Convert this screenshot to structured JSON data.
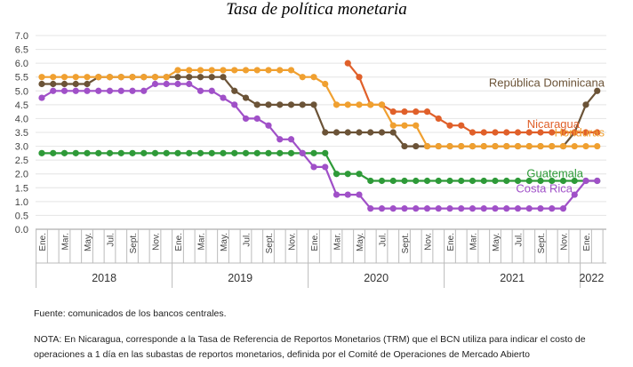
{
  "chart_data": {
    "type": "line",
    "title": "Tasa de política monetaria",
    "ylim": [
      0,
      7
    ],
    "yticks": [
      "0.0",
      "0.5",
      "1.0",
      "1.5",
      "2.0",
      "2.5",
      "3.0",
      "3.5",
      "4.0",
      "4.5",
      "5.0",
      "5.5",
      "6.0",
      "6.5",
      "7.0"
    ],
    "x": [
      "Ene.2018",
      "Feb.2018",
      "Mar.2018",
      "Abr.2018",
      "May.2018",
      "Jun.2018",
      "Jul.2018",
      "Ago.2018",
      "Sept.2018",
      "Oct.2018",
      "Nov.2018",
      "Dic.2018",
      "Ene.2019",
      "Feb.2019",
      "Mar.2019",
      "Abr.2019",
      "May.2019",
      "Jun.2019",
      "Jul.2019",
      "Ago.2019",
      "Sept.2019",
      "Oct.2019",
      "Nov.2019",
      "Dic.2019",
      "Ene.2020",
      "Feb.2020",
      "Mar.2020",
      "Abr.2020",
      "May.2020",
      "Jun.2020",
      "Jul.2020",
      "Ago.2020",
      "Sept.2020",
      "Oct.2020",
      "Nov.2020",
      "Dic.2020",
      "Ene.2021",
      "Feb.2021",
      "Mar.2021",
      "Abr.2021",
      "May.2021",
      "Jun.2021",
      "Jul.2021",
      "Ago.2021",
      "Sept.2021",
      "Oct.2021",
      "Nov.2021",
      "Dic.2021",
      "Ene.2022",
      "Feb.2022"
    ],
    "month_labels": [
      "Ene.",
      "Mar.",
      "May.",
      "Jul.",
      "Sept.",
      "Nov.",
      "Ene.",
      "Mar.",
      "May.",
      "Jul.",
      "Sept.",
      "Nov.",
      "Ene.",
      "Mar.",
      "May.",
      "Jul.",
      "Sept.",
      "Nov.",
      "Ene.",
      "Mar.",
      "May.",
      "Jul.",
      "Sept.",
      "Nov.",
      "Ene."
    ],
    "years": [
      "2018",
      "2019",
      "2020",
      "2021",
      "2022"
    ],
    "grid": true,
    "legend": "inline labels at right",
    "series": [
      {
        "name": "República Dominicana",
        "color": "#6b5337",
        "values": [
          5.25,
          5.25,
          5.25,
          5.25,
          5.25,
          5.5,
          5.5,
          5.5,
          5.5,
          5.5,
          5.5,
          5.5,
          5.5,
          5.5,
          5.5,
          5.5,
          5.5,
          5.0,
          4.75,
          4.5,
          4.5,
          4.5,
          4.5,
          4.5,
          4.5,
          3.5,
          3.5,
          3.5,
          3.5,
          3.5,
          3.5,
          3.5,
          3.0,
          3.0,
          3.0,
          3.0,
          3.0,
          3.0,
          3.0,
          3.0,
          3.0,
          3.0,
          3.0,
          3.0,
          3.0,
          3.0,
          3.0,
          3.5,
          4.5,
          5.0
        ]
      },
      {
        "name": "Nicaragua",
        "color": "#e0602a",
        "values": [
          null,
          null,
          null,
          null,
          null,
          null,
          null,
          null,
          null,
          null,
          null,
          null,
          null,
          null,
          null,
          null,
          null,
          null,
          null,
          null,
          null,
          null,
          null,
          null,
          null,
          null,
          null,
          6.0,
          5.5,
          4.5,
          4.5,
          4.25,
          4.25,
          4.25,
          4.25,
          4.0,
          3.75,
          3.75,
          3.5,
          3.5,
          3.5,
          3.5,
          3.5,
          3.5,
          3.5,
          3.5,
          3.5,
          3.5,
          3.5,
          3.5
        ]
      },
      {
        "name": "Honduras",
        "color": "#f0a030",
        "values": [
          5.5,
          5.5,
          5.5,
          5.5,
          5.5,
          5.5,
          5.5,
          5.5,
          5.5,
          5.5,
          5.5,
          5.5,
          5.75,
          5.75,
          5.75,
          5.75,
          5.75,
          5.75,
          5.75,
          5.75,
          5.75,
          5.75,
          5.75,
          5.5,
          5.5,
          5.25,
          4.5,
          4.5,
          4.5,
          4.5,
          4.5,
          3.75,
          3.75,
          3.75,
          3.0,
          3.0,
          3.0,
          3.0,
          3.0,
          3.0,
          3.0,
          3.0,
          3.0,
          3.0,
          3.0,
          3.0,
          3.0,
          3.0,
          3.0,
          3.0
        ]
      },
      {
        "name": "Guatemala",
        "color": "#2e9a38",
        "values": [
          2.75,
          2.75,
          2.75,
          2.75,
          2.75,
          2.75,
          2.75,
          2.75,
          2.75,
          2.75,
          2.75,
          2.75,
          2.75,
          2.75,
          2.75,
          2.75,
          2.75,
          2.75,
          2.75,
          2.75,
          2.75,
          2.75,
          2.75,
          2.75,
          2.75,
          2.75,
          2.0,
          2.0,
          2.0,
          1.75,
          1.75,
          1.75,
          1.75,
          1.75,
          1.75,
          1.75,
          1.75,
          1.75,
          1.75,
          1.75,
          1.75,
          1.75,
          1.75,
          1.75,
          1.75,
          1.75,
          1.75,
          1.75,
          1.75,
          1.75
        ]
      },
      {
        "name": "Costa Rica",
        "color": "#a050c8",
        "values": [
          4.75,
          5.0,
          5.0,
          5.0,
          5.0,
          5.0,
          5.0,
          5.0,
          5.0,
          5.0,
          5.25,
          5.25,
          5.25,
          5.25,
          5.0,
          5.0,
          4.75,
          4.5,
          4.0,
          4.0,
          3.75,
          3.25,
          3.25,
          2.75,
          2.25,
          2.25,
          1.25,
          1.25,
          1.25,
          0.75,
          0.75,
          0.75,
          0.75,
          0.75,
          0.75,
          0.75,
          0.75,
          0.75,
          0.75,
          0.75,
          0.75,
          0.75,
          0.75,
          0.75,
          0.75,
          0.75,
          0.75,
          1.25,
          1.75,
          1.75
        ]
      }
    ]
  },
  "notes": {
    "source": "Fuente: comunicados de los bancos centrales.",
    "note": "NOTA: En Nicaragua, corresponde a la Tasa de Referencia de Reportos Monetarios (TRM) que el BCN utiliza para indicar el costo de operaciones a 1 día en las subastas de reportos monetarios, definida por el Comité de Operaciones de Mercado Abierto"
  }
}
